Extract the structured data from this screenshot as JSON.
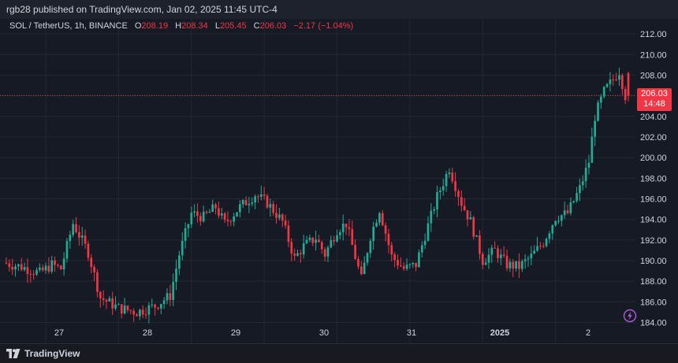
{
  "header": {
    "published_text": "rgb28 published on TradingView.com, Jan 02, 2025 11:45 UTC-4"
  },
  "legend": {
    "symbol": "SOL / TetherUS, 1h, BINANCE",
    "open_label": "O",
    "open": "208.19",
    "high_label": "H",
    "high": "208.34",
    "low_label": "L",
    "low": "205.45",
    "close_label": "C",
    "close": "206.03",
    "change": "−2.17 (−1.04%)"
  },
  "price_label": {
    "price": "206.03",
    "countdown": "14:48"
  },
  "footer": {
    "brand": "TradingView"
  },
  "colors": {
    "up": "#22ab94",
    "down": "#f23645",
    "background": "#161a25",
    "grid": "#242833",
    "text": "#d1d4dc"
  },
  "icons": {
    "logo": "tradingview-logo-icon",
    "lightning": "lightning-icon"
  },
  "chart_data": {
    "type": "candlestick",
    "title": "SOL / TetherUS, 1h, BINANCE",
    "ylim": [
      183.5,
      213
    ],
    "y_ticks": [
      184,
      186,
      188,
      190,
      192,
      194,
      196,
      198,
      200,
      202,
      204,
      206,
      208,
      210,
      212
    ],
    "x_ticks": [
      "27",
      "28",
      "29",
      "30",
      "31",
      "2025",
      "2"
    ],
    "last_price": 206.03,
    "grid": true,
    "anchors": [
      [
        0,
        189.8
      ],
      [
        6,
        189.4
      ],
      [
        12,
        188.8
      ],
      [
        16,
        189.6
      ],
      [
        19,
        189.2
      ],
      [
        23,
        193.6
      ],
      [
        28,
        190.8
      ],
      [
        32,
        186.4
      ],
      [
        38,
        185.4
      ],
      [
        44,
        185.0
      ],
      [
        50,
        185.6
      ],
      [
        55,
        186.6
      ],
      [
        58,
        190.6
      ],
      [
        62,
        194.6
      ],
      [
        66,
        194.2
      ],
      [
        70,
        195.2
      ],
      [
        73,
        193.6
      ],
      [
        78,
        195.2
      ],
      [
        83,
        196.4
      ],
      [
        87,
        195.6
      ],
      [
        92,
        193.8
      ],
      [
        96,
        190.2
      ],
      [
        99,
        191.4
      ],
      [
        103,
        192.2
      ],
      [
        106,
        190.6
      ],
      [
        110,
        193.0
      ],
      [
        113,
        193.6
      ],
      [
        118,
        188.2
      ],
      [
        121,
        192.4
      ],
      [
        124,
        195.0
      ],
      [
        128,
        190.4
      ],
      [
        132,
        189.2
      ],
      [
        136,
        189.6
      ],
      [
        140,
        193.4
      ],
      [
        143,
        196.2
      ],
      [
        147,
        199.0
      ],
      [
        151,
        195.6
      ],
      [
        154,
        193.8
      ],
      [
        158,
        190.0
      ],
      [
        162,
        191.0
      ],
      [
        166,
        189.6
      ],
      [
        170,
        189.4
      ],
      [
        174,
        190.4
      ],
      [
        178,
        191.8
      ],
      [
        182,
        194.2
      ],
      [
        186,
        194.6
      ],
      [
        190,
        197.0
      ],
      [
        193,
        199.6
      ],
      [
        195,
        204.0
      ],
      [
        198,
        206.4
      ],
      [
        201,
        207.6
      ],
      [
        203,
        208.4
      ],
      [
        205,
        206.0
      ]
    ],
    "final_candle": {
      "open": 208.19,
      "high": 208.34,
      "low": 205.45,
      "close": 206.03
    }
  }
}
